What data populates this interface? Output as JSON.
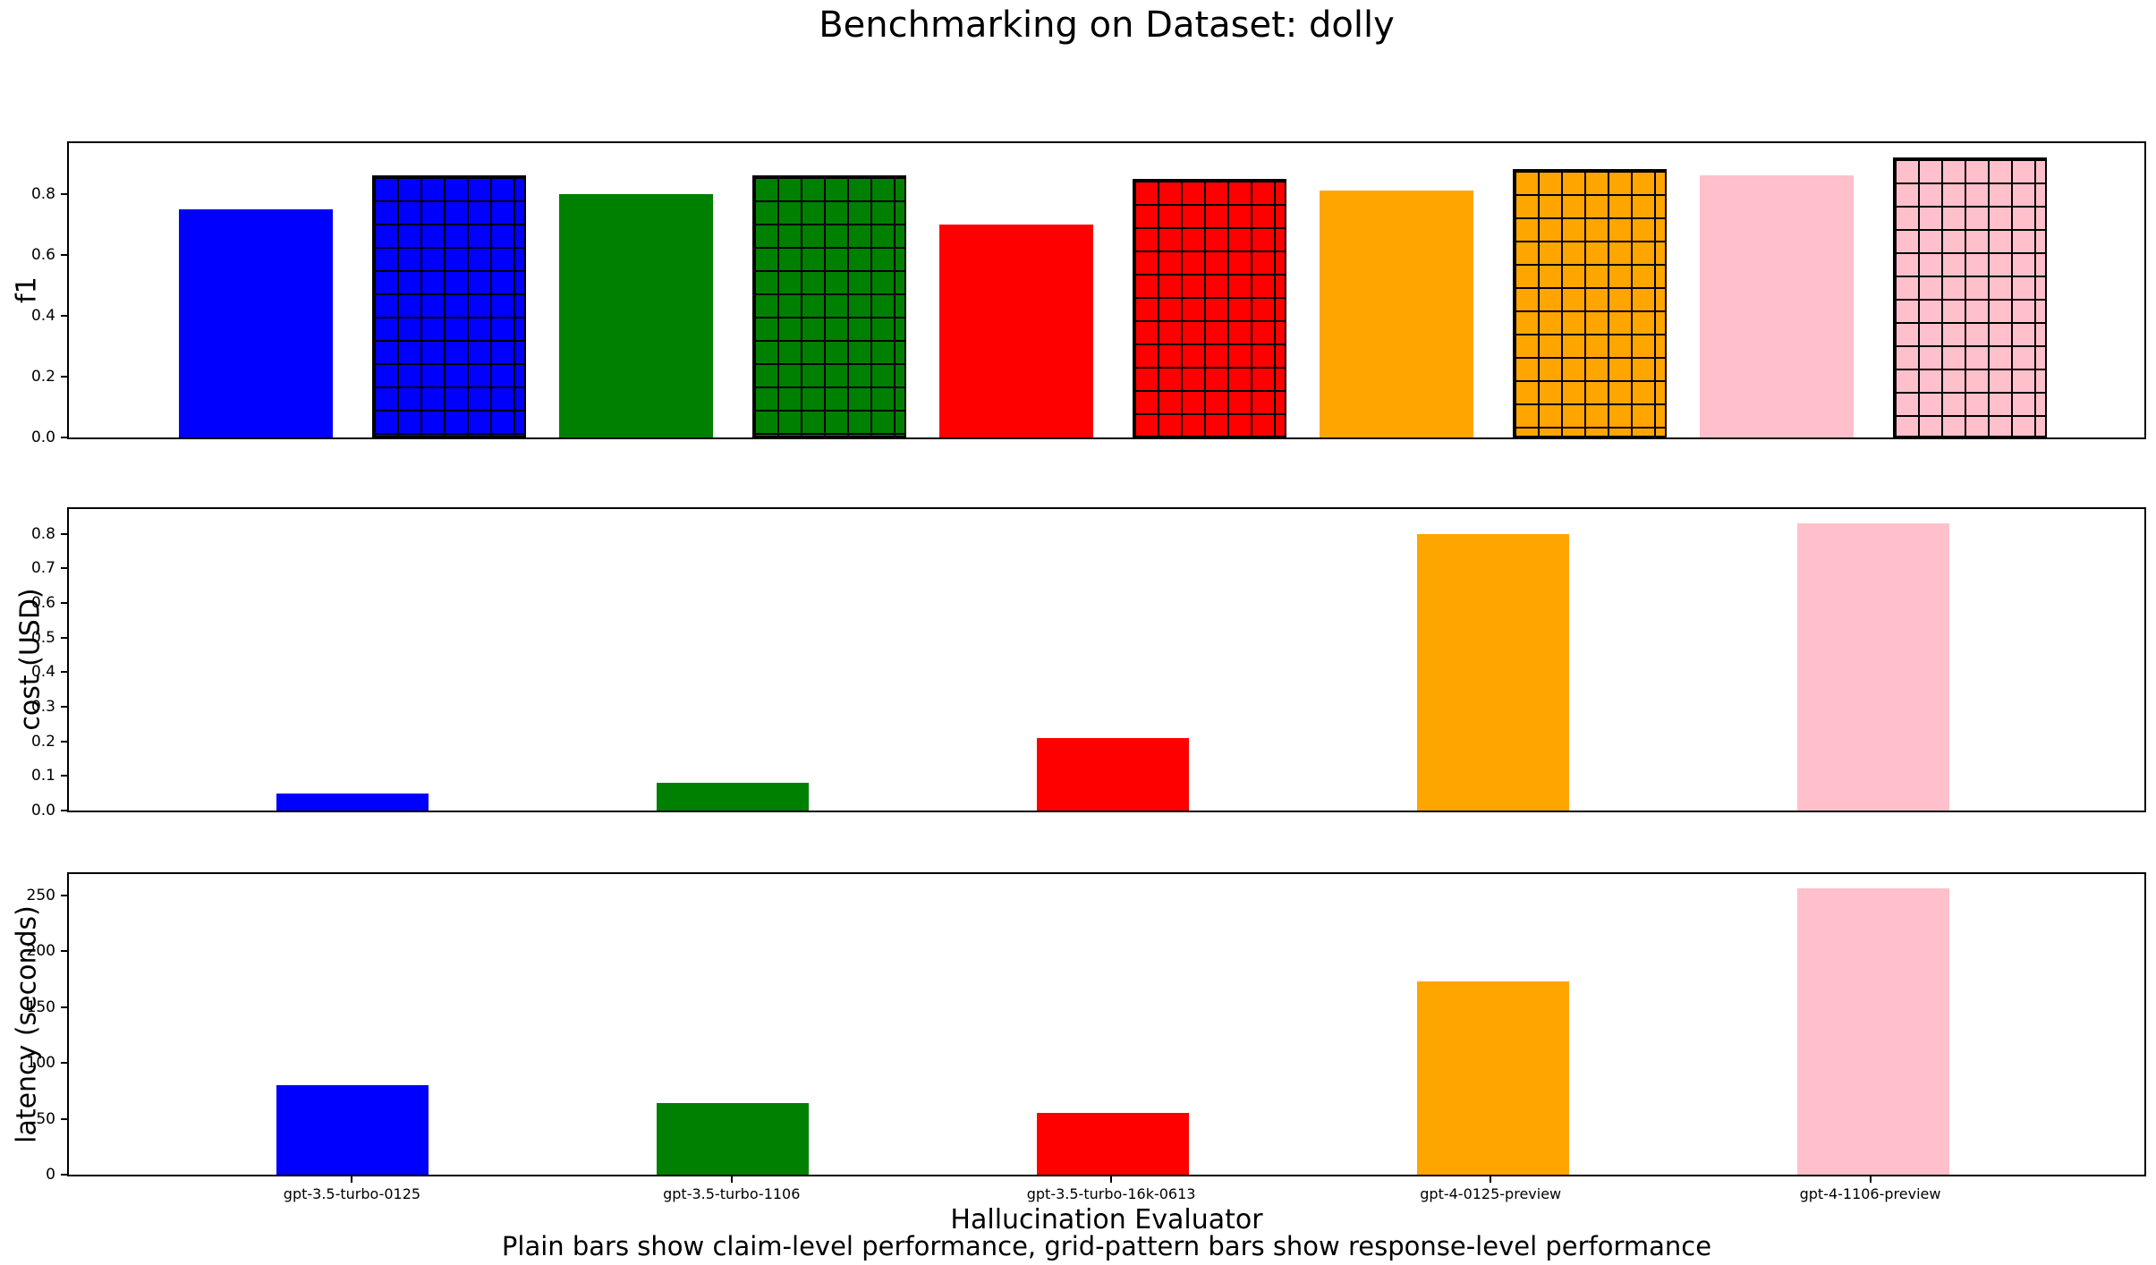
{
  "figure": {
    "title": "Benchmarking on Dataset: dolly",
    "xlabel": "Hallucination Evaluator",
    "caption": "Plain bars show claim-level performance, grid-pattern bars show response-level performance"
  },
  "models": [
    "gpt-3.5-turbo-0125",
    "gpt-3.5-turbo-1106",
    "gpt-3.5-turbo-16k-0613",
    "gpt-4-0125-preview",
    "gpt-4-1106-preview"
  ],
  "model_colors": [
    "#0000FF",
    "#008000",
    "#FF0000",
    "#FFA500",
    "#FFC0CB"
  ],
  "chart_data": [
    {
      "type": "bar",
      "title": "",
      "ylabel": "f1",
      "xlabel": "",
      "categories": [
        "gpt-3.5-turbo-0125",
        "gpt-3.5-turbo-1106",
        "gpt-3.5-turbo-16k-0613",
        "gpt-4-0125-preview",
        "gpt-4-1106-preview"
      ],
      "series": [
        {
          "name": "claim-level (plain bars)",
          "style": "plain",
          "values": [
            0.75,
            0.8,
            0.7,
            0.81,
            0.86
          ]
        },
        {
          "name": "response-level (grid-pattern bars)",
          "style": "grid-hatch",
          "values": [
            0.86,
            0.86,
            0.85,
            0.88,
            0.92
          ]
        }
      ],
      "bar_colors": [
        "#0000FF",
        "#008000",
        "#FF0000",
        "#FFA500",
        "#FFC0CB"
      ],
      "ylim": [
        0,
        0.966
      ],
      "yticks": [
        "0.0",
        "0.2",
        "0.4",
        "0.6",
        "0.8"
      ],
      "grid": false,
      "legend": "none"
    },
    {
      "type": "bar",
      "title": "",
      "ylabel": "cost (USD)",
      "xlabel": "",
      "categories": [
        "gpt-3.5-turbo-0125",
        "gpt-3.5-turbo-1106",
        "gpt-3.5-turbo-16k-0613",
        "gpt-4-0125-preview",
        "gpt-4-1106-preview"
      ],
      "series": [
        {
          "name": "cost",
          "style": "plain",
          "values": [
            0.05,
            0.08,
            0.21,
            0.8,
            0.83
          ]
        }
      ],
      "bar_colors": [
        "#0000FF",
        "#008000",
        "#FF0000",
        "#FFA500",
        "#FFC0CB"
      ],
      "ylim": [
        0,
        0.872
      ],
      "yticks": [
        "0.0",
        "0.1",
        "0.2",
        "0.3",
        "0.4",
        "0.5",
        "0.6",
        "0.7",
        "0.8"
      ],
      "grid": false,
      "legend": "none"
    },
    {
      "type": "bar",
      "title": "",
      "ylabel": "latency (seconds)",
      "xlabel": "Hallucination Evaluator",
      "categories": [
        "gpt-3.5-turbo-0125",
        "gpt-3.5-turbo-1106",
        "gpt-3.5-turbo-16k-0613",
        "gpt-4-0125-preview",
        "gpt-4-1106-preview"
      ],
      "series": [
        {
          "name": "latency",
          "style": "plain",
          "values": [
            80,
            64,
            55,
            173,
            256
          ]
        }
      ],
      "bar_colors": [
        "#0000FF",
        "#008000",
        "#FF0000",
        "#FFA500",
        "#FFC0CB"
      ],
      "ylim": [
        0,
        269
      ],
      "yticks": [
        "0",
        "50",
        "100",
        "150",
        "200",
        "250"
      ],
      "grid": false,
      "legend": "none"
    }
  ]
}
